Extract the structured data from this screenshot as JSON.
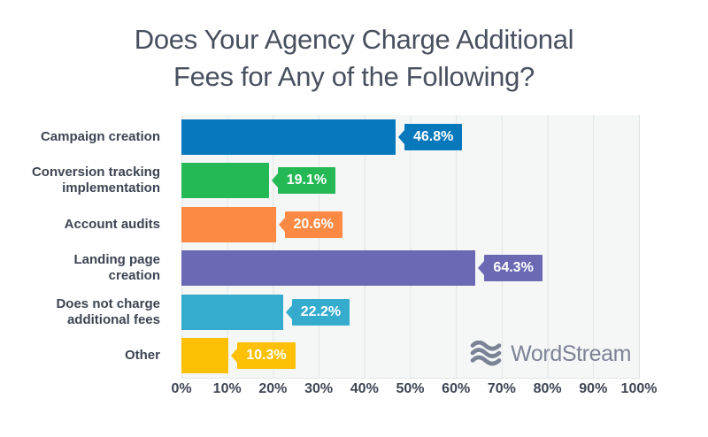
{
  "title": {
    "line1": "Does Your Agency Charge Additional",
    "line2": "Fees for Any of the Following?"
  },
  "watermark": {
    "icon": "wordstream-waves-icon",
    "text": "WordStream",
    "color": "#7c8396"
  },
  "chart_data": {
    "type": "bar",
    "orientation": "horizontal",
    "title": "Does Your Agency Charge Additional Fees for Any of the Following?",
    "categories": [
      "Campaign creation",
      "Conversion tracking implementation",
      "Account audits",
      "Landing page creation",
      "Does not charge additional fees",
      "Other"
    ],
    "values": [
      46.8,
      19.1,
      20.6,
      64.3,
      22.2,
      10.3
    ],
    "value_labels": [
      "46.8%",
      "19.1%",
      "20.6%",
      "64.3%",
      "22.2%",
      "10.3%"
    ],
    "bar_colors": [
      "#0878bc",
      "#25b956",
      "#fc8a44",
      "#6b69b3",
      "#35abcd",
      "#fec004"
    ],
    "xlabel": "",
    "ylabel": "",
    "xlim": [
      0,
      100
    ],
    "x_ticks": [
      "0%",
      "10%",
      "20%",
      "30%",
      "40%",
      "50%",
      "60%",
      "70%",
      "80%",
      "90%",
      "100%"
    ],
    "grid": "vertical",
    "legend": false,
    "plot_background": "#f5f7f7",
    "gridline_color": "#e3e6e6",
    "label_text_color": "#ffffff"
  }
}
